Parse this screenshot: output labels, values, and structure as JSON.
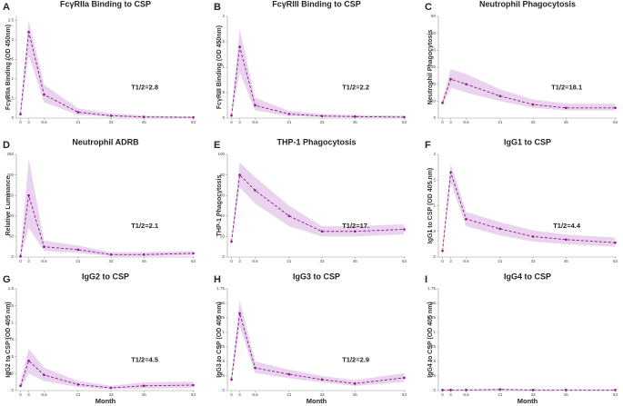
{
  "chart_data": [
    {
      "type": "line",
      "panel": "A",
      "title": "FcγRIIa Binding to CSP",
      "ylabel": "FcγRIIa Binding (OD 450nm)",
      "annotation": "T1/2=2.8",
      "x": [
        0,
        3,
        8.6,
        21,
        33,
        45,
        63
      ],
      "values": [
        0.1,
        2.2,
        0.6,
        0.15,
        0.06,
        0.03,
        0.02
      ],
      "ci_lower": [
        0.05,
        1.6,
        0.4,
        0.08,
        0.03,
        0.01,
        0.01
      ],
      "ci_upper": [
        0.2,
        2.5,
        0.85,
        0.25,
        0.12,
        0.06,
        0.04
      ],
      "color": "#8b1a8b",
      "band_color": "#ead3ee",
      "xlim": [
        -1.5,
        63.5
      ],
      "xticks": [
        0,
        3,
        8.6,
        21,
        33,
        45,
        63
      ],
      "ylim": [
        0,
        2.6
      ],
      "yticks": [
        0,
        0.5,
        1,
        1.5,
        2,
        2.5
      ]
    },
    {
      "type": "line",
      "panel": "B",
      "title": "FcγRIII Binding to CSP",
      "ylabel": "FcγRIII Binding (OD 450nm)",
      "annotation": "T1/2=2.2",
      "x": [
        0,
        3,
        8.6,
        21,
        33,
        45,
        63
      ],
      "values": [
        0.05,
        1.4,
        0.25,
        0.08,
        0.04,
        0.03,
        0.02
      ],
      "ci_lower": [
        0.02,
        0.9,
        0.15,
        0.04,
        0.02,
        0.01,
        0.01
      ],
      "ci_upper": [
        0.1,
        1.75,
        0.4,
        0.14,
        0.08,
        0.06,
        0.05
      ],
      "color": "#8b1a8b",
      "band_color": "#ead3ee",
      "xlim": [
        -1.5,
        63.5
      ],
      "xticks": [
        0,
        3,
        8.6,
        21,
        33,
        45,
        63
      ],
      "ylim": [
        0,
        2
      ],
      "yticks": [
        0,
        0.5,
        1,
        1.5,
        2
      ]
    },
    {
      "type": "line",
      "panel": "C",
      "title": "Neutrophil Phagocytosis",
      "ylabel": "Neutrophil Phagocytosis",
      "annotation": "T1/2=18.1",
      "x": [
        0,
        3,
        8.6,
        21,
        33,
        45,
        63
      ],
      "values": [
        9,
        23,
        20,
        13,
        8,
        6,
        6
      ],
      "ci_lower": [
        7,
        18,
        15,
        10,
        6,
        4.5,
        4.5
      ],
      "ci_upper": [
        11,
        29,
        26,
        17,
        11,
        8.5,
        8.5
      ],
      "color": "#8b1a8b",
      "band_color": "#ead3ee",
      "xlim": [
        -1.5,
        63.5
      ],
      "xticks": [
        0,
        3,
        8.6,
        21,
        33,
        45,
        63
      ],
      "ylim": [
        0,
        60
      ],
      "yticks": [
        0,
        10,
        20,
        30,
        40,
        50,
        60
      ]
    },
    {
      "type": "line",
      "panel": "D",
      "title": "Neutrophil ADRB",
      "ylabel": "Relative Luminance",
      "annotation": "T1/2=2.1",
      "x": [
        0,
        3,
        8.6,
        21,
        33,
        45,
        63
      ],
      "values": [
        2,
        150,
        25,
        18,
        6,
        6,
        9
      ],
      "ci_lower": [
        0,
        70,
        15,
        10,
        2,
        2,
        4
      ],
      "ci_upper": [
        6,
        240,
        40,
        28,
        12,
        12,
        15
      ],
      "color": "#8b1a8b",
      "band_color": "#ead3ee",
      "xlim": [
        -1.5,
        63.5
      ],
      "xticks": [
        0,
        3,
        8.6,
        21,
        33,
        45,
        63
      ],
      "ylim": [
        0,
        250
      ],
      "yticks": [
        0,
        50,
        100,
        150,
        200,
        250
      ]
    },
    {
      "type": "line",
      "panel": "E",
      "title": "THP-1 Phagocytosis",
      "ylabel": "THP-1 Phagocytosis",
      "annotation": "T1/2=17.",
      "x": [
        0,
        3,
        8.6,
        21,
        33,
        45,
        63
      ],
      "values": [
        15,
        80,
        65,
        40,
        25,
        25,
        27
      ],
      "ci_lower": [
        12,
        68,
        52,
        30,
        20,
        20,
        22
      ],
      "ci_upper": [
        18,
        92,
        78,
        50,
        30,
        30,
        32
      ],
      "color": "#8b1a8b",
      "band_color": "#ead3ee",
      "xlim": [
        -1.5,
        63.5
      ],
      "xticks": [
        0,
        3,
        8.6,
        21,
        33,
        45,
        63
      ],
      "ylim": [
        0,
        100
      ],
      "yticks": [
        0,
        20,
        40,
        60,
        80,
        100
      ]
    },
    {
      "type": "line",
      "panel": "F",
      "title": "IgG1 to CSP",
      "ylabel": "IgG1 to CSP (OD 405 nm)",
      "annotation": "T1/2=4.4",
      "x": [
        0,
        3,
        8.6,
        21,
        33,
        45,
        63
      ],
      "values": [
        0.12,
        1.65,
        0.74,
        0.55,
        0.4,
        0.34,
        0.28
      ],
      "ci_lower": [
        0.08,
        1.45,
        0.6,
        0.42,
        0.3,
        0.25,
        0.2
      ],
      "ci_upper": [
        0.16,
        1.82,
        0.88,
        0.68,
        0.52,
        0.44,
        0.38
      ],
      "color": "#8b1a8b",
      "band_color": "#ead3ee",
      "xlim": [
        -1.5,
        63.5
      ],
      "xticks": [
        0,
        3,
        8.6,
        21,
        33,
        45,
        63
      ],
      "ylim": [
        0,
        2
      ],
      "yticks": [
        0,
        0.5,
        1,
        1.5,
        2
      ]
    },
    {
      "type": "line",
      "panel": "G",
      "title": "IgG2 to CSP",
      "ylabel": "IgG2 to CSP (OD 405 nm)",
      "xlabel": "Month",
      "annotation": "T1/2=4.5",
      "x": [
        0,
        3,
        8.6,
        21,
        33,
        45,
        63
      ],
      "values": [
        0.07,
        0.44,
        0.23,
        0.09,
        0.04,
        0.07,
        0.08
      ],
      "ci_lower": [
        0.03,
        0.25,
        0.14,
        0.05,
        0.02,
        0.03,
        0.04
      ],
      "ci_upper": [
        0.12,
        0.62,
        0.34,
        0.14,
        0.07,
        0.12,
        0.13
      ],
      "color": "#8b1a8b",
      "band_color": "#ead3ee",
      "xlim": [
        -1.5,
        63.5
      ],
      "xticks": [
        0,
        3,
        8.6,
        21,
        33,
        45,
        63
      ],
      "ylim": [
        0,
        1.5
      ],
      "yticks": [
        0,
        0.25,
        0.5,
        0.75,
        1,
        1.25,
        1.5
      ]
    },
    {
      "type": "line",
      "panel": "H",
      "title": "IgG3 to CSP",
      "ylabel": "IgG3 to CSP (OD 405 nm)",
      "xlabel": "Month",
      "annotation": "T1/2=2.9",
      "x": [
        0,
        3,
        8.6,
        21,
        33,
        45,
        63
      ],
      "values": [
        0.19,
        1.33,
        0.39,
        0.28,
        0.19,
        0.12,
        0.22
      ],
      "ci_lower": [
        0.12,
        1.1,
        0.3,
        0.21,
        0.14,
        0.08,
        0.15
      ],
      "ci_upper": [
        0.26,
        1.55,
        0.5,
        0.36,
        0.25,
        0.18,
        0.3
      ],
      "color": "#8b1a8b",
      "band_color": "#ead3ee",
      "xlim": [
        -1.5,
        63.5
      ],
      "xticks": [
        0,
        3,
        8.6,
        21,
        33,
        45,
        63
      ],
      "ylim": [
        0,
        1.75
      ],
      "yticks": [
        0,
        0.25,
        0.5,
        0.75,
        1,
        1.25,
        1.5,
        1.75
      ]
    },
    {
      "type": "line",
      "panel": "I",
      "title": "IgG4 to CSP",
      "ylabel": "IgG4 to CSP (OD 405 nm)",
      "xlabel": "Month",
      "x": [
        0,
        3,
        8.6,
        21,
        33,
        45,
        63
      ],
      "values": [
        0.01,
        0.01,
        0.01,
        0.02,
        0.01,
        0.01,
        0.01
      ],
      "ci_lower": [
        0,
        0,
        0,
        0.01,
        0,
        0,
        0
      ],
      "ci_upper": [
        0.02,
        0.02,
        0.02,
        0.03,
        0.02,
        0.02,
        0.02
      ],
      "color": "#8b1a8b",
      "band_color": "#ead3ee",
      "xlim": [
        -1.5,
        63.5
      ],
      "xticks": [
        0,
        3,
        8.6,
        21,
        33,
        45,
        63
      ],
      "ylim": [
        0,
        1.75
      ],
      "yticks": [
        0,
        0.25,
        0.5,
        0.75,
        1,
        1.25,
        1.5,
        1.75
      ]
    }
  ]
}
